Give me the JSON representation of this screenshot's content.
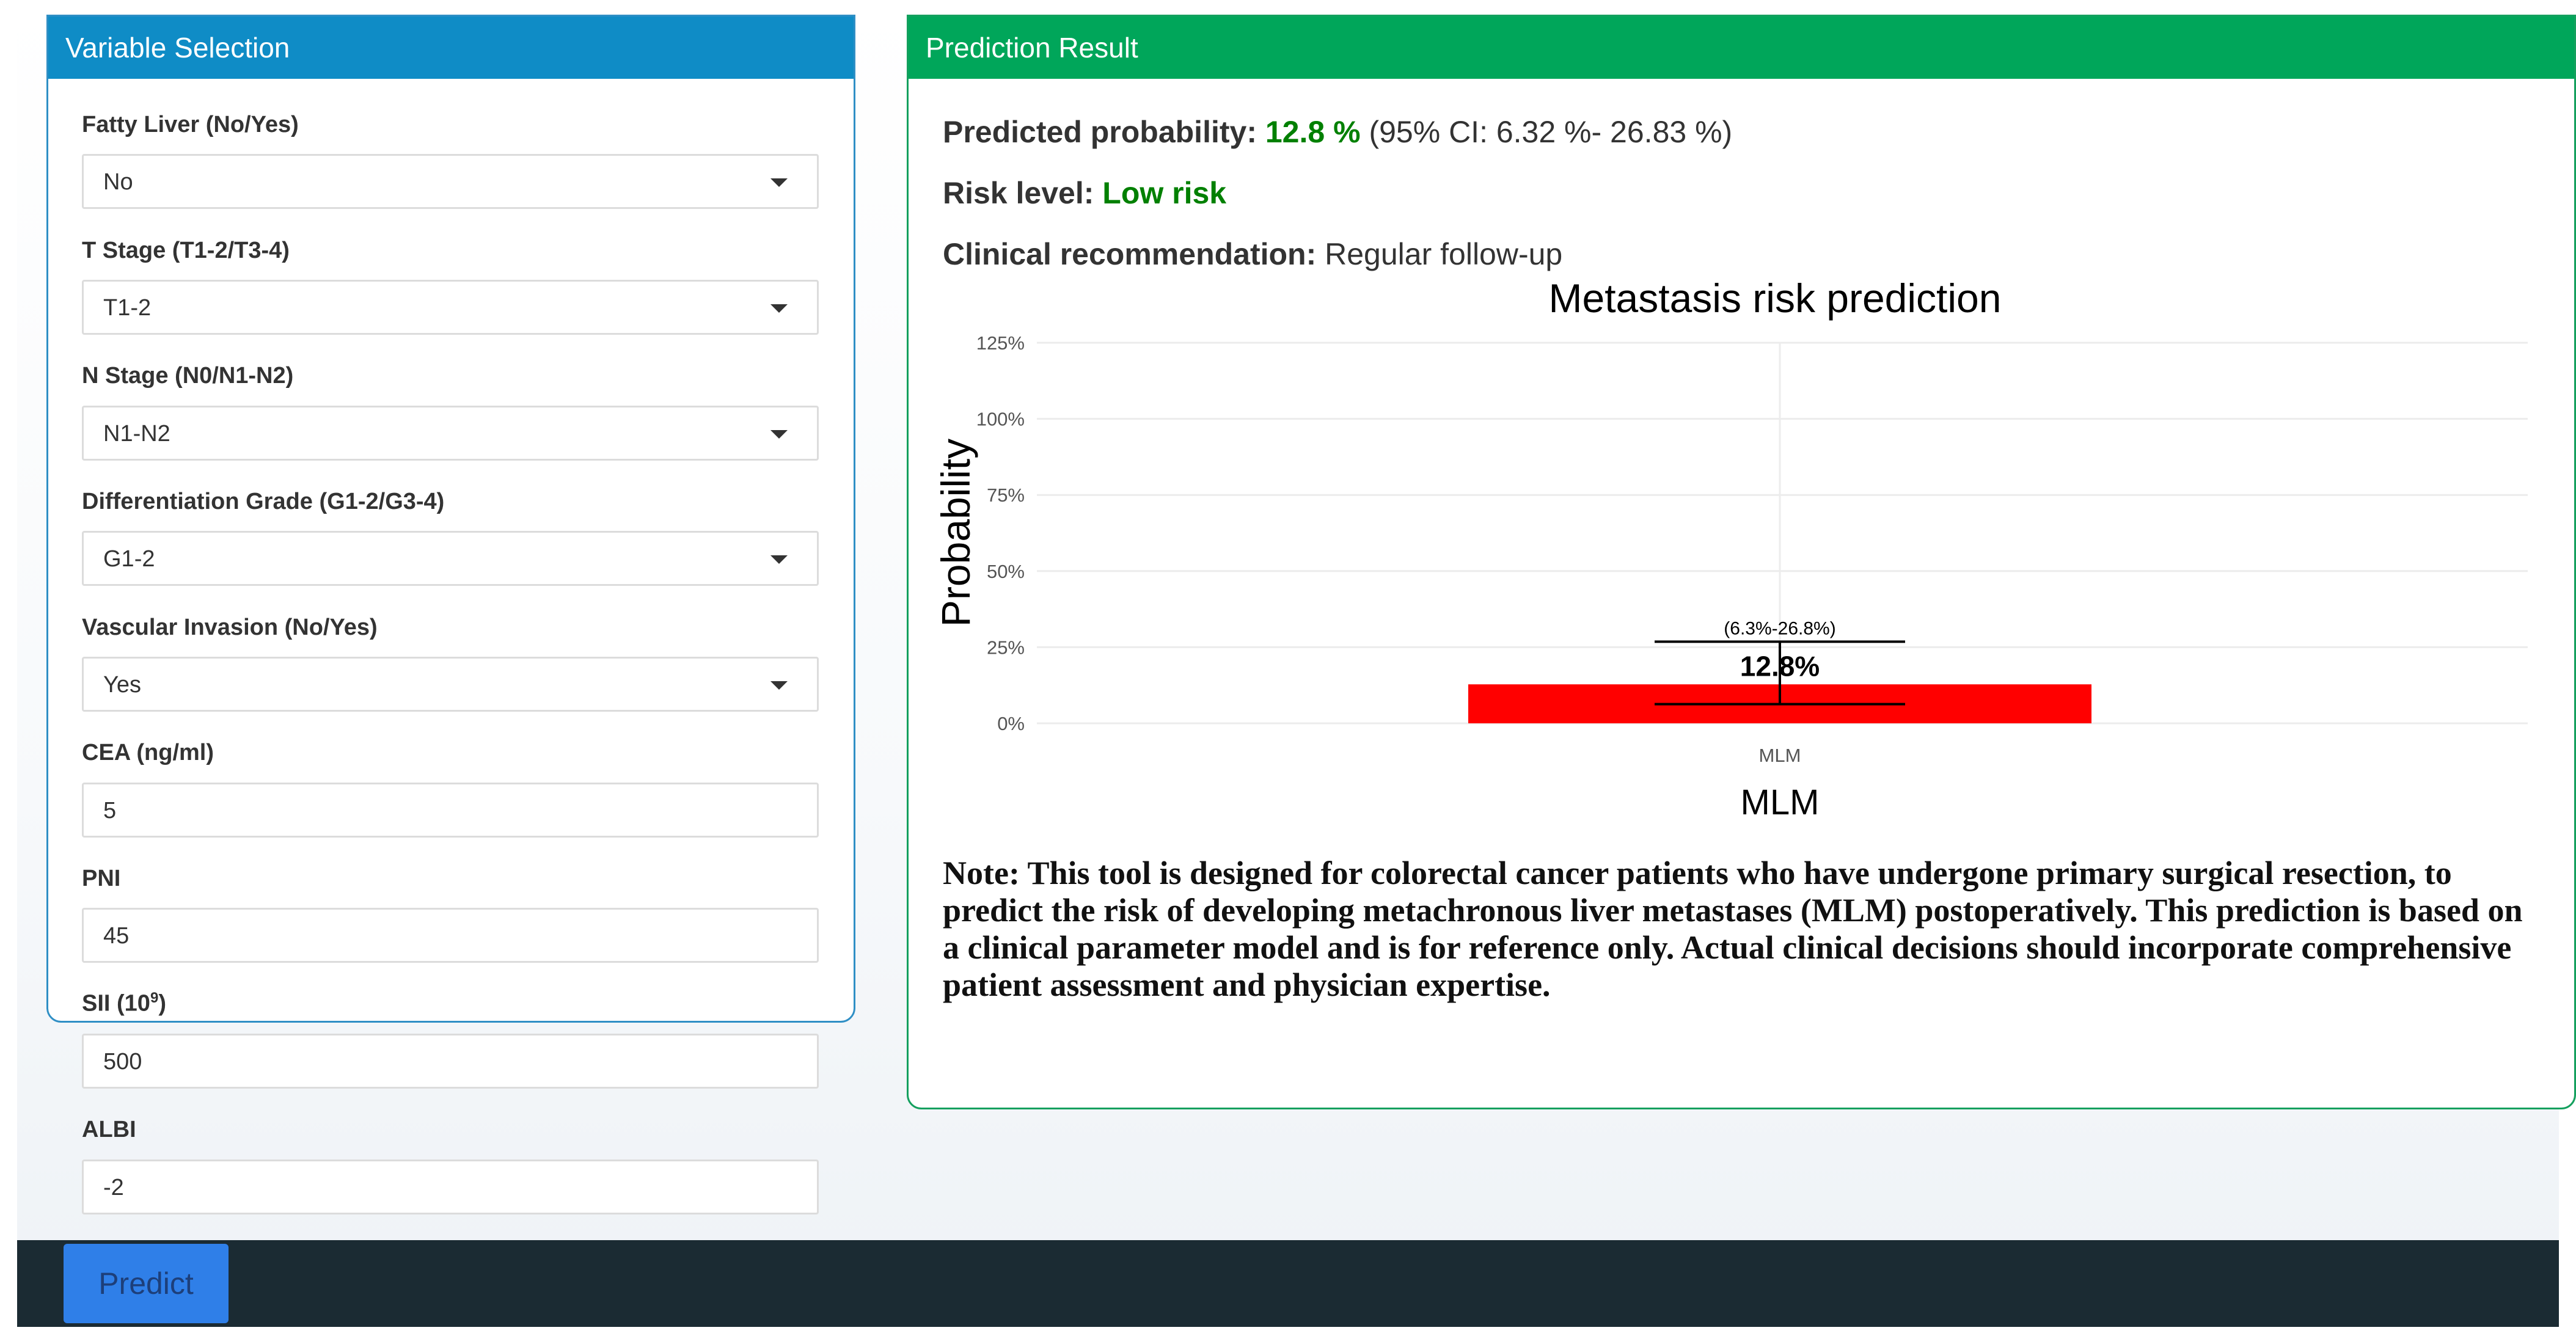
{
  "variable_panel": {
    "title": "Variable Selection",
    "fields": [
      {
        "label": "Fatty Liver (No/Yes)",
        "value": "No",
        "type": "select"
      },
      {
        "label": "T Stage (T1-2/T3-4)",
        "value": "T1-2",
        "type": "select"
      },
      {
        "label": "N Stage (N0/N1-N2)",
        "value": "N1-N2",
        "type": "select"
      },
      {
        "label": "Differentiation Grade (G1-2/G3-4)",
        "value": "G1-2",
        "type": "select"
      },
      {
        "label": "Vascular Invasion (No/Yes)",
        "value": "Yes",
        "type": "select"
      },
      {
        "label": "CEA (ng/ml)",
        "value": "5",
        "type": "input"
      },
      {
        "label": "PNI",
        "value": "45",
        "type": "input"
      },
      {
        "label_main": "SII (10",
        "label_sup": "9",
        "label_tail": ")",
        "value": "500",
        "type": "input"
      },
      {
        "label": "ALBI",
        "value": "-2",
        "type": "input"
      }
    ]
  },
  "result_panel": {
    "title": "Prediction Result",
    "prob_label": "Predicted probability:",
    "prob_value": "12.8 %",
    "prob_ci": "(95% CI: 6.32 %- 26.83 %)",
    "risk_label": "Risk level:",
    "risk_value": "Low risk",
    "rec_label": "Clinical recommendation:",
    "rec_value": "Regular follow-up",
    "note": "Note:   This tool is designed for colorectal cancer patients who have undergone primary surgical resection, to predict the risk of developing metachronous liver metastases (MLM) postoperatively. This prediction is based on a clinical parameter model and is for reference only. Actual clinical decisions should incorporate comprehensive patient assessment and physician expertise."
  },
  "colors": {
    "left_header": "#0f8cc6",
    "right_header": "#00a65a",
    "highlight_green": "#008000",
    "bar": "#ff0000",
    "button": "#2f7fe8",
    "bottom_bar": "#1b2b33"
  },
  "chart_data": {
    "type": "bar",
    "title": "Metastasis risk prediction",
    "xlabel": "MLM",
    "ylabel": "Probability",
    "categories": [
      "MLM"
    ],
    "values": [
      12.8
    ],
    "ci_low": [
      6.3
    ],
    "ci_high": [
      26.8
    ],
    "value_label": "12.8%",
    "ci_label": "(6.3%-26.8%)",
    "ylim": [
      0,
      125
    ],
    "yticks": [
      "0%",
      "25%",
      "50%",
      "75%",
      "100%",
      "125%"
    ],
    "ytick_values": [
      0,
      25,
      50,
      75,
      100,
      125
    ],
    "grid": true,
    "legend": "none"
  },
  "actions": {
    "predict_label": "Predict"
  }
}
